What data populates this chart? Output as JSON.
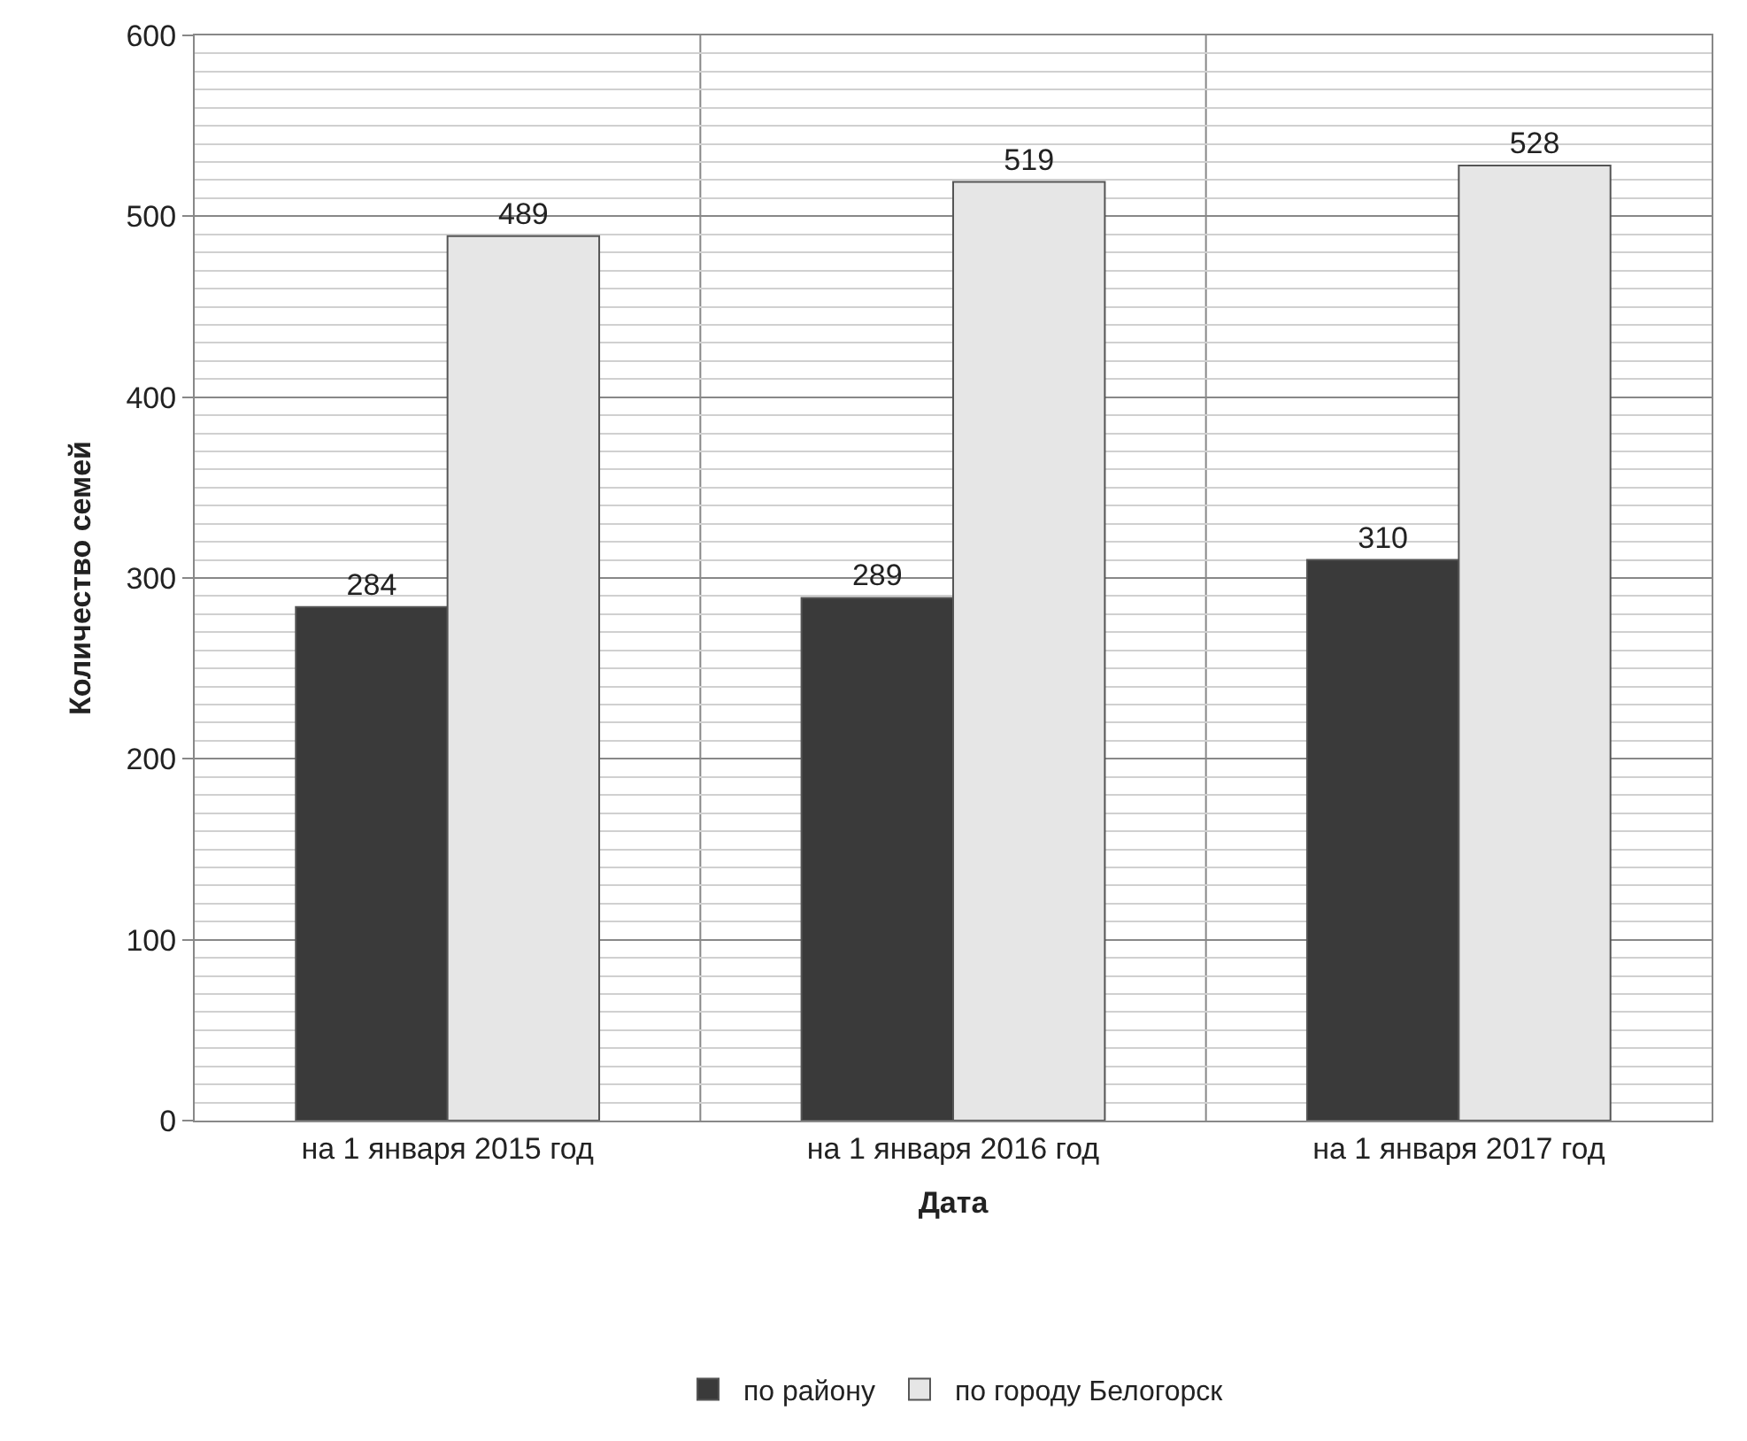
{
  "chart_data": {
    "type": "bar",
    "xlabel": "Дата",
    "ylabel": "Количество семей",
    "categories": [
      "на 1 января 2015 год",
      "на 1 января 2016 год",
      "на 1 января 2017 год"
    ],
    "series": [
      {
        "name": "по району",
        "color": "#3a3a3a",
        "values": [
          284,
          289,
          310
        ]
      },
      {
        "name": "по городу Белогорск",
        "color": "#e6e6e6",
        "values": [
          489,
          519,
          528
        ]
      }
    ],
    "ylim": [
      0,
      600
    ],
    "yticks": [
      0,
      100,
      200,
      300,
      400,
      500,
      600
    ],
    "grid": true,
    "legend": "bottom",
    "data_labels": true
  }
}
